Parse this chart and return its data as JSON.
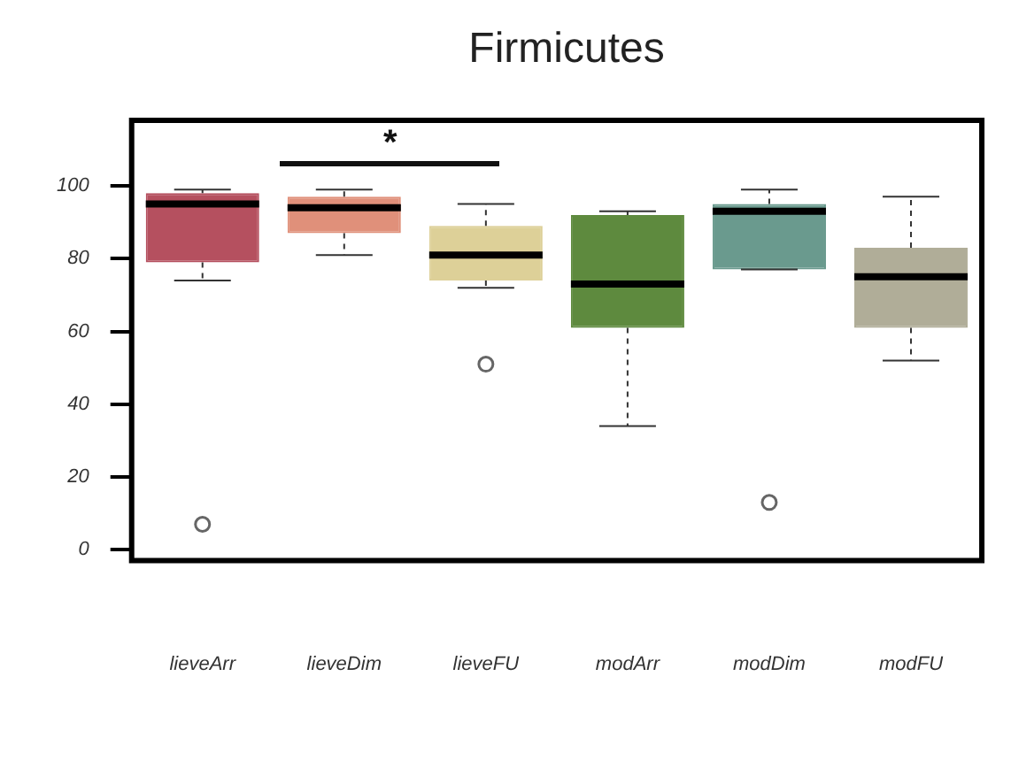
{
  "chart_data": {
    "type": "box",
    "title": "Firmicutes",
    "categories": [
      "lieveArr",
      "lieveDim",
      "lieveFU",
      "modArr",
      "modDim",
      "modFU"
    ],
    "colors": [
      "#b5505f",
      "#e0907a",
      "#ddd098",
      "#5e8a3e",
      "#6a9a8e",
      "#b0ad98"
    ],
    "boxes": [
      {
        "low": 74,
        "q1": 79,
        "median": 95,
        "q3": 98,
        "high": 99,
        "outliers": [
          7
        ]
      },
      {
        "low": 81,
        "q1": 87,
        "median": 94,
        "q3": 97,
        "high": 99
      },
      {
        "low": 72,
        "q1": 74,
        "median": 81,
        "q3": 89,
        "high": 95,
        "outliers": [
          51
        ]
      },
      {
        "low": 34,
        "q1": 61,
        "median": 73,
        "q3": 92,
        "high": 93
      },
      {
        "low": 77,
        "q1": 77,
        "median": 93,
        "q3": 95,
        "high": 99,
        "outliers": [
          13
        ]
      },
      {
        "low": 52,
        "q1": 61,
        "median": 75,
        "q3": 83,
        "high": 97
      }
    ],
    "ylim": [
      -3,
      118
    ],
    "yticks": [
      0,
      20,
      40,
      60,
      80,
      100
    ],
    "grid": false,
    "legend": false,
    "annotations": [
      "*"
    ]
  }
}
